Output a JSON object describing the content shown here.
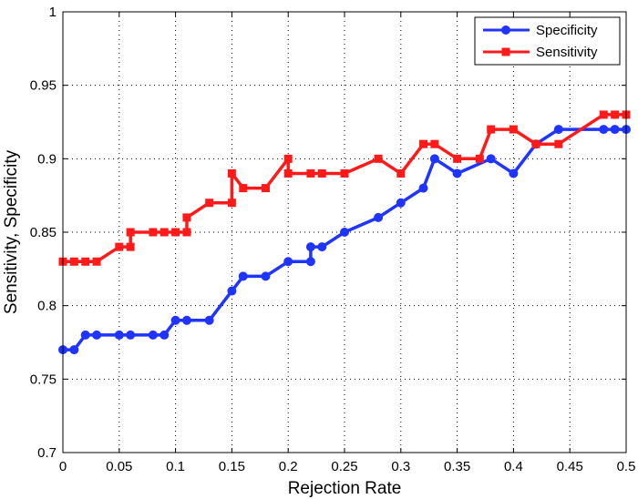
{
  "chart_data": {
    "type": "line",
    "xlabel": "Rejection Rate",
    "ylabel": "Sensitivity, Specificity",
    "xlim": [
      0,
      0.5
    ],
    "ylim": [
      0.7,
      1.0
    ],
    "xticks": [
      "0",
      "0.05",
      "0.1",
      "0.15",
      "0.2",
      "0.25",
      "0.3",
      "0.35",
      "0.4",
      "0.45",
      "0.5"
    ],
    "yticks": [
      "0.7",
      "0.75",
      "0.8",
      "0.85",
      "0.9",
      "0.95",
      "1"
    ],
    "grid": true,
    "legend_position": "top-right",
    "series": [
      {
        "name": "Specificity",
        "color": "#1f35ff",
        "marker": "circle",
        "x": [
          0,
          0.01,
          0.02,
          0.03,
          0.05,
          0.06,
          0.08,
          0.09,
          0.1,
          0.11,
          0.13,
          0.15,
          0.16,
          0.18,
          0.2,
          0.22,
          0.22,
          0.23,
          0.25,
          0.28,
          0.3,
          0.32,
          0.33,
          0.35,
          0.38,
          0.4,
          0.42,
          0.44,
          0.48,
          0.49,
          0.5
        ],
        "y": [
          0.77,
          0.77,
          0.78,
          0.78,
          0.78,
          0.78,
          0.78,
          0.78,
          0.79,
          0.79,
          0.79,
          0.81,
          0.82,
          0.82,
          0.83,
          0.83,
          0.84,
          0.84,
          0.85,
          0.86,
          0.87,
          0.88,
          0.9,
          0.89,
          0.9,
          0.89,
          0.91,
          0.92,
          0.92,
          0.92,
          0.92
        ]
      },
      {
        "name": "Sensitivity",
        "color": "#ff1a1a",
        "marker": "square",
        "x": [
          0,
          0.01,
          0.02,
          0.03,
          0.05,
          0.06,
          0.06,
          0.08,
          0.09,
          0.1,
          0.11,
          0.11,
          0.13,
          0.15,
          0.15,
          0.16,
          0.18,
          0.2,
          0.2,
          0.22,
          0.23,
          0.25,
          0.28,
          0.3,
          0.32,
          0.33,
          0.35,
          0.37,
          0.38,
          0.4,
          0.42,
          0.44,
          0.48,
          0.49,
          0.5
        ],
        "y": [
          0.83,
          0.83,
          0.83,
          0.83,
          0.84,
          0.84,
          0.85,
          0.85,
          0.85,
          0.85,
          0.85,
          0.86,
          0.87,
          0.87,
          0.89,
          0.88,
          0.88,
          0.9,
          0.89,
          0.89,
          0.89,
          0.89,
          0.9,
          0.89,
          0.91,
          0.91,
          0.9,
          0.9,
          0.92,
          0.92,
          0.91,
          0.91,
          0.93,
          0.93,
          0.93
        ]
      }
    ]
  }
}
